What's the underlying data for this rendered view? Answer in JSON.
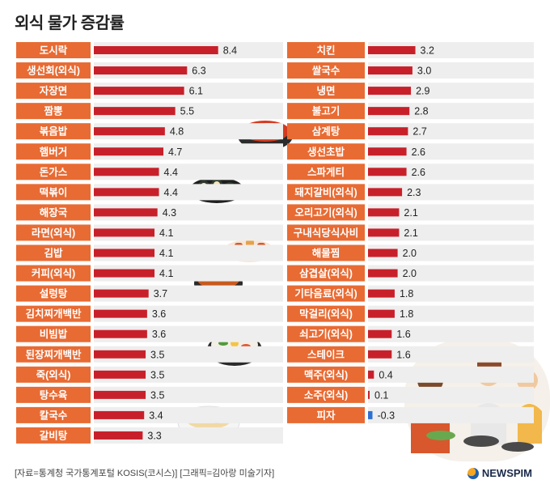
{
  "title": "외식 물가 증감률",
  "source": "[자료=통계청 국가통계포털 KOSIS(코시스)] [그래픽=김아랑 미술기자]",
  "brand": "NEWSPIM",
  "colors": {
    "label_bg": "#e86b33",
    "bar": "#c8202a",
    "bar_negative": "#2f6fd1",
    "row_bg": "#eeeeee"
  },
  "chart_data": [
    {
      "type": "bar",
      "orientation": "horizontal",
      "categories": [
        "도시락",
        "생선회(외식)",
        "자장면",
        "짬뽕",
        "볶음밥",
        "햄버거",
        "돈가스",
        "떡볶이",
        "해장국",
        "라면(외식)",
        "김밥",
        "커피(외식)",
        "설렁탕",
        "김치찌개백반",
        "비빔밥",
        "된장찌개백반",
        "죽(외식)",
        "탕수육",
        "칼국수",
        "갈비탕"
      ],
      "values": [
        8.4,
        6.3,
        6.1,
        5.5,
        4.8,
        4.7,
        4.4,
        4.4,
        4.3,
        4.1,
        4.1,
        4.1,
        3.7,
        3.6,
        3.6,
        3.5,
        3.5,
        3.5,
        3.4,
        3.3
      ],
      "value_labels": [
        "8.4",
        "6.3",
        "6.1",
        "5.5",
        "4.8",
        "4.7",
        "4.4",
        "4.4",
        "4.3",
        "4.1",
        "4.1",
        "4.1",
        "3.7",
        "3.6",
        "3.6",
        "3.5",
        "3.5",
        "3.5",
        "3.4",
        "3.3"
      ]
    },
    {
      "type": "bar",
      "orientation": "horizontal",
      "categories": [
        "치킨",
        "쌀국수",
        "냉면",
        "불고기",
        "삼계탕",
        "생선초밥",
        "스파게티",
        "돼지갈비(외식)",
        "오리고기(외식)",
        "구내식당식사비",
        "해물찜",
        "삼겹살(외식)",
        "기타음료(외식)",
        "막걸리(외식)",
        "쇠고기(외식)",
        "스테이크",
        "맥주(외식)",
        "소주(외식)",
        "피자"
      ],
      "values": [
        3.2,
        3.0,
        2.9,
        2.8,
        2.7,
        2.6,
        2.6,
        2.3,
        2.1,
        2.1,
        2.0,
        2.0,
        1.8,
        1.8,
        1.6,
        1.6,
        0.4,
        0.1,
        -0.3
      ],
      "value_labels": [
        "3.2",
        "3.0",
        "2.9",
        "2.8",
        "2.7",
        "2.6",
        "2.6",
        "2.3",
        "2.1",
        "2.1",
        "2.0",
        "2.0",
        "1.8",
        "1.8",
        "1.6",
        "1.6",
        "0.4",
        "0.1",
        "-0.3"
      ]
    }
  ]
}
